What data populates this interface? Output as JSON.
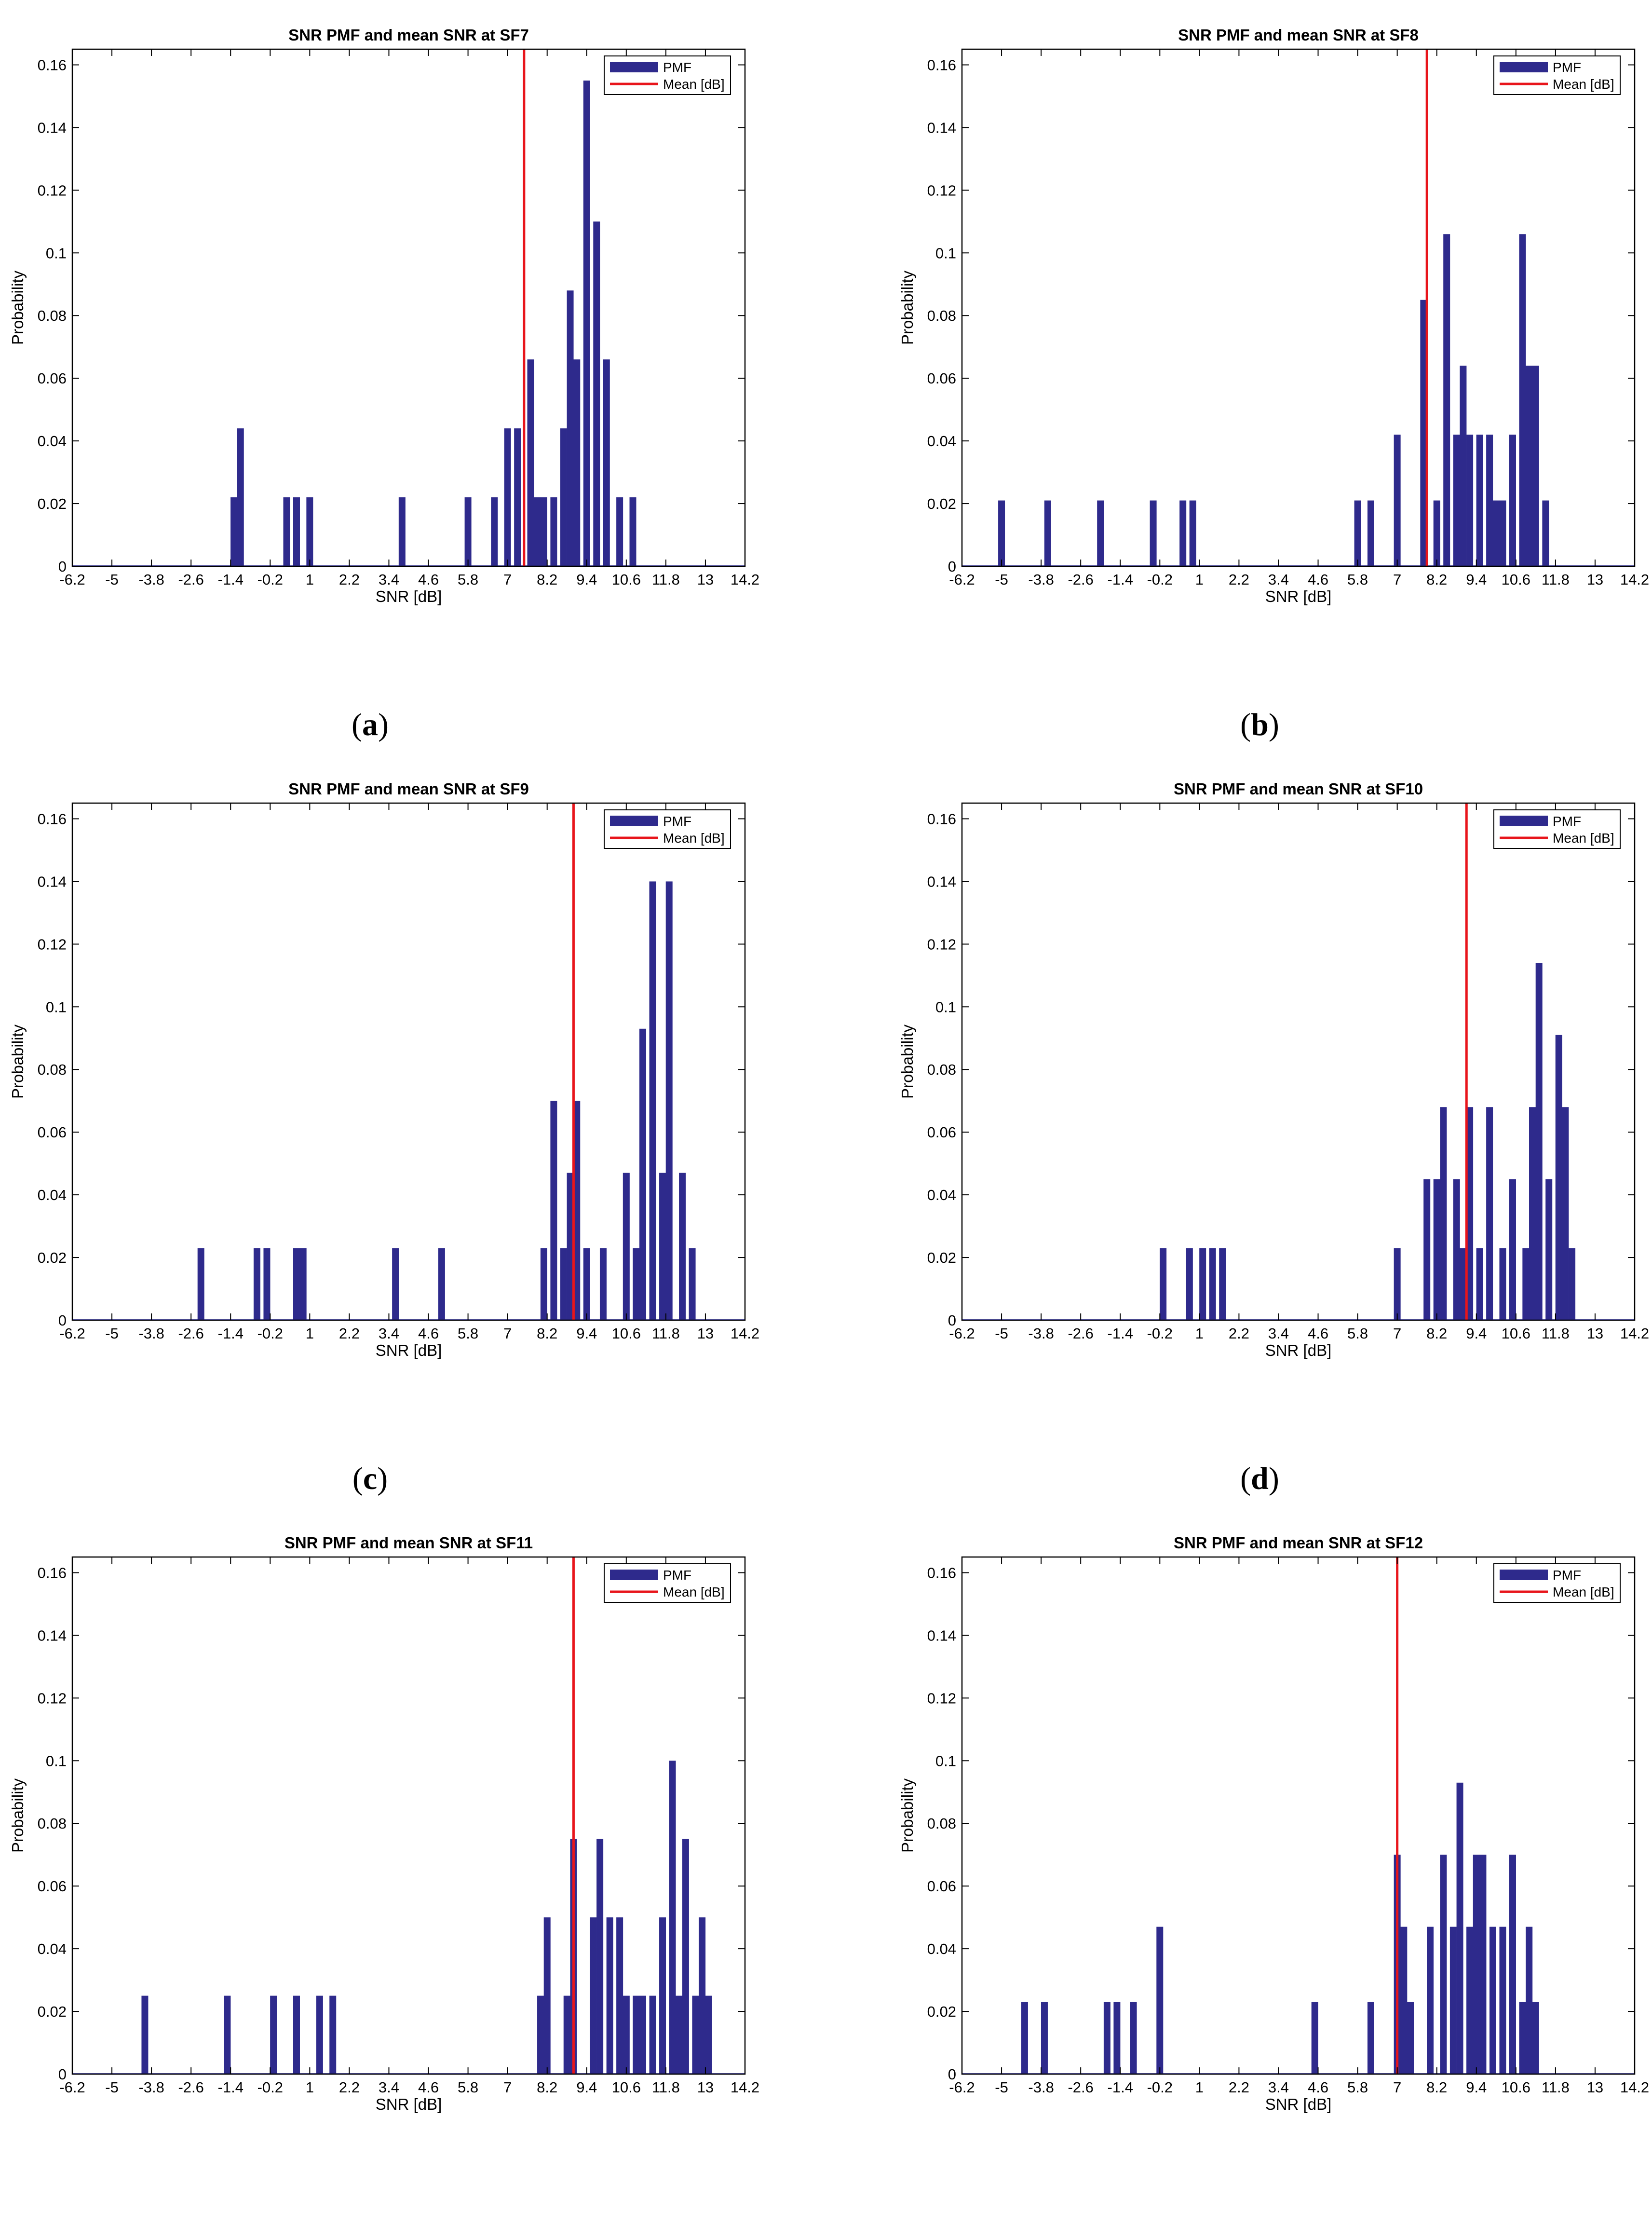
{
  "colors": {
    "bar": "#2e2a8c",
    "mean": "#e8151b",
    "axis": "#000000",
    "baseline": "#6b6bd0"
  },
  "axes_common": {
    "xlabel": "SNR [dB]",
    "ylabel": "Probability",
    "xlim": [
      -6.2,
      14.2
    ],
    "ylim": [
      0,
      0.165
    ],
    "xticks": [
      -6.2,
      -5,
      -3.8,
      -2.6,
      -1.4,
      -0.2,
      1,
      2.2,
      3.4,
      4.6,
      5.8,
      7,
      8.2,
      9.4,
      10.6,
      11.8,
      13,
      14.2
    ],
    "xtick_labels": [
      "-6.2",
      "-5",
      "-3.8",
      "-2.6",
      "-1.4",
      "-0.2",
      "1",
      "2.2",
      "3.4",
      "4.6",
      "5.8",
      "7",
      "8.2",
      "9.4",
      "10.6",
      "11.8",
      "13",
      "14.2"
    ],
    "yticks": [
      0,
      0.02,
      0.04,
      0.06,
      0.08,
      0.1,
      0.12,
      0.14,
      0.16
    ],
    "ytick_labels": [
      "0",
      "0.02",
      "0.04",
      "0.06",
      "0.08",
      "0.1",
      "0.12",
      "0.14",
      "0.16"
    ],
    "legend": {
      "pmf": "PMF",
      "mean": "Mean [dB]"
    }
  },
  "chart_data": [
    {
      "type": "bar",
      "panel_label": "(a)",
      "title": "SNR PMF and mean SNR at SF7",
      "mean": 7.5,
      "bars": [
        {
          "x": -1.3,
          "y": 0.022
        },
        {
          "x": -1.1,
          "y": 0.044
        },
        {
          "x": 0.3,
          "y": 0.022
        },
        {
          "x": 0.6,
          "y": 0.022
        },
        {
          "x": 1.0,
          "y": 0.022
        },
        {
          "x": 3.8,
          "y": 0.022
        },
        {
          "x": 5.8,
          "y": 0.022
        },
        {
          "x": 6.6,
          "y": 0.022
        },
        {
          "x": 7.0,
          "y": 0.044
        },
        {
          "x": 7.3,
          "y": 0.044
        },
        {
          "x": 7.7,
          "y": 0.066
        },
        {
          "x": 7.9,
          "y": 0.022
        },
        {
          "x": 8.1,
          "y": 0.022
        },
        {
          "x": 8.4,
          "y": 0.022
        },
        {
          "x": 8.7,
          "y": 0.044
        },
        {
          "x": 8.9,
          "y": 0.088
        },
        {
          "x": 9.1,
          "y": 0.066
        },
        {
          "x": 9.4,
          "y": 0.155
        },
        {
          "x": 9.7,
          "y": 0.11
        },
        {
          "x": 10.0,
          "y": 0.066
        },
        {
          "x": 10.4,
          "y": 0.022
        },
        {
          "x": 10.8,
          "y": 0.022
        }
      ]
    },
    {
      "type": "bar",
      "panel_label": "(b)",
      "title": "SNR PMF and mean SNR at SF8",
      "mean": 7.9,
      "bars": [
        {
          "x": -5.0,
          "y": 0.021
        },
        {
          "x": -3.6,
          "y": 0.021
        },
        {
          "x": -2.0,
          "y": 0.021
        },
        {
          "x": -0.4,
          "y": 0.021
        },
        {
          "x": 0.5,
          "y": 0.021
        },
        {
          "x": 0.8,
          "y": 0.021
        },
        {
          "x": 5.8,
          "y": 0.021
        },
        {
          "x": 6.2,
          "y": 0.021
        },
        {
          "x": 7.0,
          "y": 0.042
        },
        {
          "x": 7.8,
          "y": 0.085
        },
        {
          "x": 8.2,
          "y": 0.021
        },
        {
          "x": 8.5,
          "y": 0.106
        },
        {
          "x": 8.8,
          "y": 0.042
        },
        {
          "x": 9.0,
          "y": 0.064
        },
        {
          "x": 9.2,
          "y": 0.042
        },
        {
          "x": 9.5,
          "y": 0.042
        },
        {
          "x": 9.8,
          "y": 0.042
        },
        {
          "x": 10.0,
          "y": 0.021
        },
        {
          "x": 10.2,
          "y": 0.021
        },
        {
          "x": 10.5,
          "y": 0.042
        },
        {
          "x": 10.8,
          "y": 0.106
        },
        {
          "x": 11.0,
          "y": 0.064
        },
        {
          "x": 11.2,
          "y": 0.064
        },
        {
          "x": 11.5,
          "y": 0.021
        }
      ]
    },
    {
      "type": "bar",
      "panel_label": "(c)",
      "title": "SNR PMF and mean SNR at SF9",
      "mean": 9.0,
      "bars": [
        {
          "x": -2.3,
          "y": 0.023
        },
        {
          "x": -0.6,
          "y": 0.023
        },
        {
          "x": -0.3,
          "y": 0.023
        },
        {
          "x": 0.6,
          "y": 0.023
        },
        {
          "x": 0.8,
          "y": 0.023
        },
        {
          "x": 3.6,
          "y": 0.023
        },
        {
          "x": 5.0,
          "y": 0.023
        },
        {
          "x": 8.1,
          "y": 0.023
        },
        {
          "x": 8.4,
          "y": 0.07
        },
        {
          "x": 8.7,
          "y": 0.023
        },
        {
          "x": 8.9,
          "y": 0.047
        },
        {
          "x": 9.1,
          "y": 0.07
        },
        {
          "x": 9.4,
          "y": 0.023
        },
        {
          "x": 9.9,
          "y": 0.023
        },
        {
          "x": 10.6,
          "y": 0.047
        },
        {
          "x": 10.9,
          "y": 0.023
        },
        {
          "x": 11.1,
          "y": 0.093
        },
        {
          "x": 11.4,
          "y": 0.14
        },
        {
          "x": 11.7,
          "y": 0.047
        },
        {
          "x": 11.9,
          "y": 0.14
        },
        {
          "x": 12.3,
          "y": 0.047
        },
        {
          "x": 12.6,
          "y": 0.023
        }
      ]
    },
    {
      "type": "bar",
      "panel_label": "(d)",
      "title": "SNR PMF and mean SNR at SF10",
      "mean": 9.1,
      "bars": [
        {
          "x": -0.1,
          "y": 0.023
        },
        {
          "x": 0.7,
          "y": 0.023
        },
        {
          "x": 1.1,
          "y": 0.023
        },
        {
          "x": 1.4,
          "y": 0.023
        },
        {
          "x": 1.7,
          "y": 0.023
        },
        {
          "x": 7.0,
          "y": 0.023
        },
        {
          "x": 7.9,
          "y": 0.045
        },
        {
          "x": 8.2,
          "y": 0.045
        },
        {
          "x": 8.4,
          "y": 0.068
        },
        {
          "x": 8.8,
          "y": 0.045
        },
        {
          "x": 9.0,
          "y": 0.023
        },
        {
          "x": 9.2,
          "y": 0.068
        },
        {
          "x": 9.5,
          "y": 0.023
        },
        {
          "x": 9.8,
          "y": 0.068
        },
        {
          "x": 10.2,
          "y": 0.023
        },
        {
          "x": 10.5,
          "y": 0.045
        },
        {
          "x": 10.9,
          "y": 0.023
        },
        {
          "x": 11.1,
          "y": 0.068
        },
        {
          "x": 11.3,
          "y": 0.114
        },
        {
          "x": 11.6,
          "y": 0.045
        },
        {
          "x": 11.9,
          "y": 0.091
        },
        {
          "x": 12.1,
          "y": 0.068
        },
        {
          "x": 12.3,
          "y": 0.023
        }
      ]
    },
    {
      "type": "bar",
      "panel_label": "(e)",
      "title": "SNR PMF and mean SNR at SF11",
      "mean": 9.0,
      "bars": [
        {
          "x": -4.0,
          "y": 0.025
        },
        {
          "x": -1.5,
          "y": 0.025
        },
        {
          "x": -0.1,
          "y": 0.025
        },
        {
          "x": 0.6,
          "y": 0.025
        },
        {
          "x": 1.3,
          "y": 0.025
        },
        {
          "x": 1.7,
          "y": 0.025
        },
        {
          "x": 8.0,
          "y": 0.025
        },
        {
          "x": 8.2,
          "y": 0.05
        },
        {
          "x": 8.8,
          "y": 0.025
        },
        {
          "x": 9.0,
          "y": 0.075
        },
        {
          "x": 9.6,
          "y": 0.05
        },
        {
          "x": 9.8,
          "y": 0.075
        },
        {
          "x": 10.1,
          "y": 0.05
        },
        {
          "x": 10.4,
          "y": 0.05
        },
        {
          "x": 10.6,
          "y": 0.025
        },
        {
          "x": 10.9,
          "y": 0.025
        },
        {
          "x": 11.1,
          "y": 0.025
        },
        {
          "x": 11.4,
          "y": 0.025
        },
        {
          "x": 11.7,
          "y": 0.05
        },
        {
          "x": 12.0,
          "y": 0.1
        },
        {
          "x": 12.2,
          "y": 0.025
        },
        {
          "x": 12.4,
          "y": 0.075
        },
        {
          "x": 12.7,
          "y": 0.025
        },
        {
          "x": 12.9,
          "y": 0.05
        },
        {
          "x": 13.1,
          "y": 0.025
        }
      ]
    },
    {
      "type": "bar",
      "panel_label": "(f)",
      "title": "SNR PMF and mean SNR at SF12",
      "mean": 7.0,
      "bars": [
        {
          "x": -4.3,
          "y": 0.023
        },
        {
          "x": -3.7,
          "y": 0.023
        },
        {
          "x": -1.8,
          "y": 0.023
        },
        {
          "x": -1.5,
          "y": 0.023
        },
        {
          "x": -1.0,
          "y": 0.023
        },
        {
          "x": -0.2,
          "y": 0.047
        },
        {
          "x": 4.5,
          "y": 0.023
        },
        {
          "x": 6.2,
          "y": 0.023
        },
        {
          "x": 7.0,
          "y": 0.07
        },
        {
          "x": 7.2,
          "y": 0.047
        },
        {
          "x": 7.4,
          "y": 0.023
        },
        {
          "x": 8.0,
          "y": 0.047
        },
        {
          "x": 8.4,
          "y": 0.07
        },
        {
          "x": 8.7,
          "y": 0.047
        },
        {
          "x": 8.9,
          "y": 0.093
        },
        {
          "x": 9.2,
          "y": 0.047
        },
        {
          "x": 9.4,
          "y": 0.07
        },
        {
          "x": 9.6,
          "y": 0.07
        },
        {
          "x": 9.9,
          "y": 0.047
        },
        {
          "x": 10.2,
          "y": 0.047
        },
        {
          "x": 10.5,
          "y": 0.07
        },
        {
          "x": 10.8,
          "y": 0.023
        },
        {
          "x": 11.0,
          "y": 0.047
        },
        {
          "x": 11.2,
          "y": 0.023
        }
      ]
    }
  ]
}
